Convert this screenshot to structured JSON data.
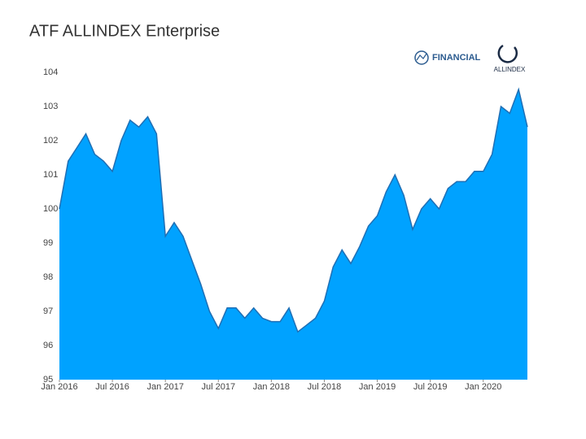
{
  "chart_data": {
    "type": "area",
    "title": "ATF ALLINDEX Enterprise",
    "logo_texts": [
      "FINANCIAL",
      "ALLINDEX"
    ],
    "color": "#00a2ff",
    "line_color": "#1f6fb5",
    "x": [
      "2016-01",
      "2016-02",
      "2016-03",
      "2016-04",
      "2016-05",
      "2016-06",
      "2016-07",
      "2016-08",
      "2016-09",
      "2016-10",
      "2016-11",
      "2016-12",
      "2017-01",
      "2017-02",
      "2017-03",
      "2017-04",
      "2017-05",
      "2017-06",
      "2017-07",
      "2017-08",
      "2017-09",
      "2017-10",
      "2017-11",
      "2017-12",
      "2018-01",
      "2018-02",
      "2018-03",
      "2018-04",
      "2018-05",
      "2018-06",
      "2018-07",
      "2018-08",
      "2018-09",
      "2018-10",
      "2018-11",
      "2018-12",
      "2019-01",
      "2019-02",
      "2019-03",
      "2019-04",
      "2019-05",
      "2019-06",
      "2019-07",
      "2019-08",
      "2019-09",
      "2019-10",
      "2019-11",
      "2019-12",
      "2020-01",
      "2020-02",
      "2020-03",
      "2020-04",
      "2020-05",
      "2020-06"
    ],
    "values": [
      100.0,
      101.4,
      101.8,
      102.2,
      101.6,
      101.4,
      101.1,
      102.0,
      102.6,
      102.4,
      102.7,
      102.2,
      99.2,
      99.6,
      99.2,
      98.5,
      97.8,
      97.0,
      96.5,
      97.1,
      97.1,
      96.8,
      97.1,
      96.8,
      96.7,
      96.7,
      97.1,
      96.4,
      96.6,
      96.8,
      97.3,
      98.3,
      98.8,
      98.4,
      98.9,
      99.5,
      99.8,
      100.5,
      101.0,
      100.4,
      99.4,
      100.0,
      100.3,
      100.0,
      100.6,
      100.8,
      100.8,
      101.1,
      101.1,
      101.6,
      103.0,
      102.8,
      103.5,
      102.4
    ],
    "xlim": [
      "2016-01",
      "2020-06"
    ],
    "xticks": [
      {
        "value": "2016-01",
        "label": "Jan 2016"
      },
      {
        "value": "2016-07",
        "label": "Jul 2016"
      },
      {
        "value": "2017-01",
        "label": "Jan 2017"
      },
      {
        "value": "2017-07",
        "label": "Jul 2017"
      },
      {
        "value": "2018-01",
        "label": "Jan 2018"
      },
      {
        "value": "2018-07",
        "label": "Jul 2018"
      },
      {
        "value": "2019-01",
        "label": "Jan 2019"
      },
      {
        "value": "2019-07",
        "label": "Jul 2019"
      },
      {
        "value": "2020-01",
        "label": "Jan 2020"
      }
    ],
    "ylim": [
      95,
      104
    ],
    "yticks": [
      95,
      96,
      97,
      98,
      99,
      100,
      101,
      102,
      103,
      104
    ],
    "grid": false
  }
}
